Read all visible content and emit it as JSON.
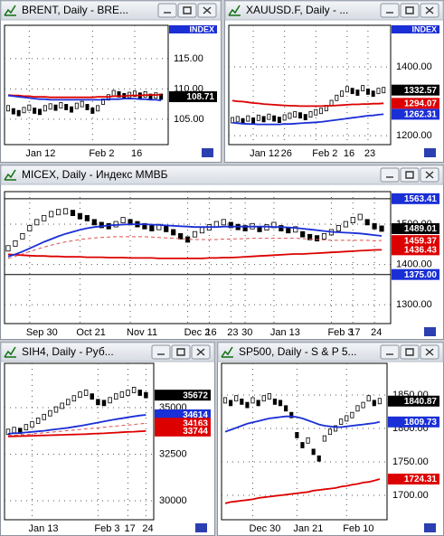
{
  "chart_data": [
    {
      "type": "candlestick",
      "title": "BRENT, Daily - BRE...",
      "index_label": "INDEX",
      "categories": [
        null,
        null,
        null,
        null,
        "Jan 12",
        null,
        null,
        null,
        null,
        null,
        null,
        null,
        null,
        null,
        null,
        null,
        "Feb 2",
        null,
        null,
        null,
        null,
        null,
        null,
        null,
        "16",
        null,
        null,
        null,
        null,
        null
      ],
      "series": [
        {
          "color": "#000000",
          "values": [
            106.8,
            106.3,
            106.0,
            106.5,
            106.9,
            106.4,
            106.2,
            106.8,
            107.1,
            106.9,
            107.3,
            107.0,
            106.6,
            107.2,
            107.5,
            107.0,
            106.4,
            106.8,
            107.9,
            108.6,
            109.3,
            109.1,
            108.8,
            109.0,
            109.2,
            108.9,
            109.1,
            108.7,
            108.9,
            108.71
          ]
        },
        {
          "color": "#dd0000",
          "values": [
            109.0,
            108.9,
            108.9,
            108.8,
            108.8,
            108.7,
            108.7,
            108.7,
            108.6,
            108.6,
            108.6,
            108.6,
            108.6,
            108.6,
            108.6,
            108.6,
            108.6,
            108.7,
            108.7,
            108.7,
            108.8,
            108.8,
            108.8,
            108.9,
            108.9,
            108.9,
            109.0,
            109.0,
            109.0,
            109.1
          ]
        },
        {
          "color": "#1a2fd6",
          "values": [
            108.9,
            108.8,
            108.7,
            108.6,
            108.5,
            108.4,
            108.3,
            108.3,
            108.2,
            108.2,
            108.2,
            108.2,
            108.2,
            108.2,
            108.2,
            108.2,
            108.2,
            108.2,
            108.2,
            108.3,
            108.3,
            108.3,
            108.4,
            108.4,
            108.4,
            108.3,
            108.3,
            108.2,
            108.2,
            108.1
          ]
        }
      ],
      "ylim": [
        100.8,
        120.5
      ],
      "yticks": [
        {
          "value": 115,
          "label": "115.00"
        },
        {
          "value": 110,
          "label": "110.00"
        },
        {
          "value": 105,
          "label": "105.00"
        }
      ],
      "price_labels": [
        {
          "value": 108.71,
          "label": "108.71",
          "color": "#000000"
        }
      ],
      "grid": true
    },
    {
      "type": "candlestick",
      "title": "XAUUSD.F, Daily - ...",
      "index_label": "INDEX",
      "categories": [
        null,
        null,
        null,
        null,
        "Jan 12",
        null,
        null,
        null,
        null,
        null,
        "26",
        null,
        null,
        null,
        null,
        null,
        "Feb 2",
        null,
        null,
        null,
        null,
        null,
        "16",
        null,
        null,
        null,
        "23",
        null,
        null,
        null
      ],
      "series": [
        {
          "color": "#000000",
          "values": [
            1245,
            1248,
            1242,
            1250,
            1244,
            1252,
            1248,
            1255,
            1250,
            1246,
            1253,
            1258,
            1262,
            1259,
            1254,
            1262,
            1268,
            1272,
            1280,
            1295,
            1310,
            1322,
            1335,
            1330,
            1325,
            1338,
            1328,
            1322,
            1330,
            1332.57
          ]
        },
        {
          "color": "#dd0000",
          "values": [
            1302,
            1300,
            1299,
            1297,
            1295,
            1294,
            1292,
            1291,
            1290,
            1289,
            1288,
            1287,
            1287,
            1286,
            1286,
            1286,
            1286,
            1286,
            1287,
            1287,
            1288,
            1289,
            1290,
            1291,
            1291,
            1292,
            1292,
            1293,
            1293,
            1294.07
          ]
        },
        {
          "color": "#1a2fd6",
          "values": [
            1238,
            1236,
            1235,
            1234,
            1234,
            1233,
            1233,
            1233,
            1233,
            1233,
            1234,
            1234,
            1235,
            1236,
            1237,
            1238,
            1239,
            1240,
            1242,
            1244,
            1246,
            1248,
            1250,
            1252,
            1254,
            1256,
            1258,
            1259,
            1261,
            1262.31
          ]
        }
      ],
      "ylim": [
        1174,
        1521
      ],
      "yticks": [
        {
          "value": 1400,
          "label": "1400.00"
        },
        {
          "value": 1200,
          "label": "1200.00"
        }
      ],
      "price_labels": [
        {
          "value": 1332.57,
          "label": "1332.57",
          "color": "#000000"
        },
        {
          "value": 1294.07,
          "label": "1294.07",
          "color": "#dd0000"
        },
        {
          "value": 1262.31,
          "label": "1262.31",
          "color": "#1a2fd6"
        }
      ],
      "grid": true
    },
    {
      "type": "candlestick",
      "title": "MICEX, Daily - Индекс ММВБ",
      "categories": [
        null,
        null,
        null,
        "Sep 30",
        null,
        null,
        null,
        null,
        null,
        null,
        "Oct 21",
        null,
        null,
        null,
        null,
        null,
        null,
        "Nov 11",
        null,
        null,
        null,
        null,
        null,
        null,
        null,
        "Dec 2",
        null,
        null,
        "16",
        null,
        null,
        "23",
        null,
        "30",
        null,
        null,
        null,
        "Jan 13",
        null,
        null,
        null,
        null,
        null,
        null,
        null,
        "Feb 3",
        null,
        null,
        "17",
        null,
        null,
        "24",
        null
      ],
      "series": [
        {
          "color": "#000000",
          "values": [
            1440,
            1452,
            1470,
            1490,
            1505,
            1515,
            1525,
            1530,
            1532,
            1528,
            1520,
            1515,
            1505,
            1498,
            1495,
            1500,
            1510,
            1505,
            1500,
            1495,
            1490,
            1493,
            1488,
            1480,
            1470,
            1462,
            1475,
            1485,
            1492,
            1500,
            1505,
            1498,
            1493,
            1490,
            1495,
            1488,
            1492,
            1498,
            1490,
            1485,
            1487,
            1475,
            1468,
            1465,
            1470,
            1480,
            1490,
            1500,
            1510,
            1518,
            1505,
            1495,
            1489.01
          ]
        },
        {
          "color": "#dd0000",
          "values": [
            1425,
            1424,
            1423,
            1422,
            1421,
            1421,
            1420,
            1420,
            1419,
            1419,
            1419,
            1418,
            1418,
            1418,
            1417,
            1417,
            1417,
            1416,
            1416,
            1416,
            1416,
            1415,
            1415,
            1415,
            1415,
            1415,
            1415,
            1415,
            1416,
            1416,
            1417,
            1417,
            1418,
            1419,
            1420,
            1421,
            1422,
            1423,
            1424,
            1425,
            1426,
            1426,
            1427,
            1428,
            1429,
            1430,
            1431,
            1432,
            1433,
            1434,
            1435,
            1436,
            1436.43
          ]
        },
        {
          "color": "#1a2fd6",
          "values": [
            1420,
            1425,
            1432,
            1440,
            1448,
            1456,
            1463,
            1470,
            1476,
            1481,
            1486,
            1490,
            1493,
            1495,
            1497,
            1498,
            1499,
            1500,
            1500,
            1500,
            1499,
            1498,
            1497,
            1496,
            1495,
            1494,
            1493,
            1493,
            1493,
            1493,
            1494,
            1494,
            1494,
            1494,
            1494,
            1494,
            1494,
            1493,
            1493,
            1492,
            1491,
            1489,
            1487,
            1485,
            1483,
            1481,
            1480,
            1479,
            1478,
            1477,
            1475,
            1473,
            1471
          ]
        },
        {
          "color": "#e05050",
          "dashed": true,
          "values": [
            1415,
            1420,
            1426,
            1432,
            1438,
            1443,
            1448,
            1452,
            1456,
            1459,
            1462,
            1464,
            1466,
            1467,
            1468,
            1469,
            1469,
            1469,
            1469,
            1469,
            1468,
            1467,
            1466,
            1465,
            1464,
            1463,
            1462,
            1462,
            1462,
            1462,
            1463,
            1463,
            1464,
            1464,
            1465,
            1465,
            1465,
            1465,
            1465,
            1465,
            1465,
            1464,
            1463,
            1462,
            1461,
            1460,
            1460,
            1460,
            1460,
            1460,
            1460,
            1459,
            1459.37
          ]
        }
      ],
      "ylim": [
        1253,
        1581
      ],
      "yticks": [
        {
          "value": 1500,
          "label": "1500.00"
        },
        {
          "value": 1400,
          "label": "1400.00"
        },
        {
          "value": 1300,
          "label": "1300.00"
        }
      ],
      "price_labels": [
        {
          "value": 1563.41,
          "label": "1563.41",
          "color": "#1a2fd6",
          "line": true
        },
        {
          "value": 1489.01,
          "label": "1489.01",
          "color": "#000000"
        },
        {
          "value": 1459.37,
          "label": "1459.37",
          "color": "#dd0000"
        },
        {
          "value": 1436.43,
          "label": "1436.43",
          "color": "#dd0000"
        },
        {
          "value": 1375,
          "label": "1375.00",
          "color": "#1a2fd6",
          "line": true
        }
      ],
      "grid": true
    },
    {
      "type": "candlestick",
      "title": "SIH4, Daily - Руб...",
      "categories": [
        null,
        null,
        null,
        null,
        "Jan 13",
        null,
        null,
        null,
        null,
        null,
        null,
        null,
        null,
        null,
        null,
        "Feb 3",
        null,
        null,
        null,
        null,
        "17",
        null,
        null,
        "24"
      ],
      "series": [
        {
          "color": "#000000",
          "values": [
            33700,
            33800,
            33750,
            33950,
            34100,
            34300,
            34500,
            34700,
            34900,
            35100,
            35300,
            35500,
            35700,
            35800,
            35600,
            35300,
            35250,
            35400,
            35600,
            35700,
            35800,
            35950,
            35800,
            35672
          ]
        },
        {
          "color": "#1a2fd6",
          "values": [
            33600,
            33620,
            33640,
            33670,
            33700,
            33730,
            33760,
            33800,
            33840,
            33880,
            33920,
            33970,
            34020,
            34080,
            34140,
            34200,
            34260,
            34320,
            34380,
            34430,
            34480,
            34530,
            34580,
            34614
          ]
        },
        {
          "color": "#e05050",
          "dashed": true,
          "values": [
            33500,
            33520,
            33540,
            33560,
            33590,
            33620,
            33650,
            33680,
            33710,
            33740,
            33770,
            33800,
            33830,
            33860,
            33890,
            33920,
            33950,
            33980,
            34010,
            34040,
            34070,
            34100,
            34130,
            34163
          ]
        },
        {
          "color": "#dd0000",
          "values": [
            33450,
            33460,
            33470,
            33480,
            33490,
            33500,
            33510,
            33520,
            33530,
            33540,
            33550,
            33560,
            33570,
            33580,
            33600,
            33610,
            33620,
            33640,
            33660,
            33680,
            33700,
            33710,
            33730,
            33744
          ]
        }
      ],
      "ylim": [
        28980,
        37380
      ],
      "yticks": [
        35000,
        32500,
        30000
      ],
      "price_labels": [
        {
          "value": 35672,
          "label": "35672",
          "color": "#000000"
        },
        {
          "value": 34614,
          "label": "34614",
          "color": "#1a2fd6"
        },
        {
          "value": 34163,
          "label": "34163",
          "color": "#dd0000"
        },
        {
          "value": 33744,
          "label": "33744",
          "color": "#dd0000"
        }
      ],
      "grid": true
    },
    {
      "type": "candlestick",
      "title": "SP500, Daily - S & P 5...",
      "categories": [
        null,
        null,
        null,
        null,
        null,
        "Dec 30",
        null,
        null,
        null,
        null,
        null,
        null,
        null,
        "Jan 21",
        null,
        null,
        null,
        null,
        null,
        null,
        null,
        null,
        "Feb 10",
        null,
        null,
        null,
        null,
        null,
        null
      ],
      "series": [
        {
          "color": "#000000",
          "values": [
            1842,
            1838,
            1845,
            1840,
            1835,
            1842,
            1838,
            1845,
            1848,
            1840,
            1838,
            1830,
            1820,
            1790,
            1775,
            1782,
            1765,
            1755,
            1785,
            1795,
            1800,
            1810,
            1815,
            1820,
            1830,
            1835,
            1845,
            1838,
            1840.87
          ]
        },
        {
          "color": "#1a2fd6",
          "values": [
            1795,
            1798,
            1801,
            1804,
            1807,
            1809,
            1811,
            1813,
            1815,
            1816,
            1817,
            1818,
            1818,
            1817,
            1815,
            1812,
            1809,
            1806,
            1804,
            1803,
            1802,
            1802,
            1803,
            1804,
            1805,
            1806,
            1807,
            1808,
            1809.73
          ]
        },
        {
          "color": "#dd0000",
          "values": [
            1688,
            1690,
            1691,
            1692,
            1693,
            1694,
            1696,
            1697,
            1698,
            1699,
            1700,
            1701,
            1702,
            1703,
            1704,
            1705,
            1707,
            1708,
            1709,
            1710,
            1711,
            1713,
            1714,
            1716,
            1717,
            1719,
            1720,
            1722,
            1724.31
          ]
        }
      ],
      "ylim": [
        1663.5,
        1897.3
      ],
      "yticks": [
        {
          "value": 1850,
          "label": "1850.00"
        },
        {
          "value": 1800,
          "label": "1800.00"
        },
        {
          "value": 1750,
          "label": "1750.00"
        },
        {
          "value": 1700,
          "label": "1700.00"
        }
      ],
      "price_labels": [
        {
          "value": 1840.87,
          "label": "1840.87",
          "color": "#000000"
        },
        {
          "value": 1809.73,
          "label": "1809.73",
          "color": "#1a2fd6"
        },
        {
          "value": 1724.31,
          "label": "1724.31",
          "color": "#dd0000"
        }
      ],
      "grid": true
    }
  ]
}
